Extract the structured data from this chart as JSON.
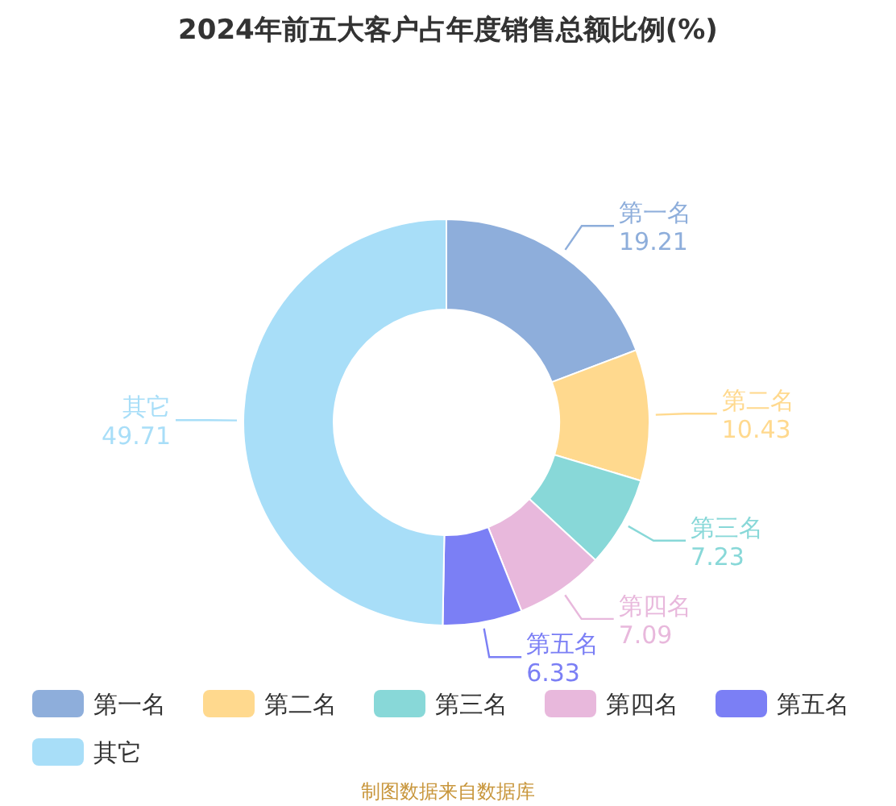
{
  "chart_data": {
    "type": "donut",
    "title": "2024年前五大客户占年度销售总额比例(%)",
    "categories": [
      "第一名",
      "第二名",
      "第三名",
      "第四名",
      "第五名",
      "其它"
    ],
    "values": [
      19.21,
      10.43,
      7.23,
      7.09,
      6.33,
      49.71
    ],
    "colors": [
      "#8eaedb",
      "#ffd98e",
      "#88d8d8",
      "#e8b8dc",
      "#7b7ff5",
      "#a8def8"
    ],
    "data_labels": true,
    "legend": "bottom",
    "annotations": [
      "制图数据来自数据库"
    ]
  }
}
